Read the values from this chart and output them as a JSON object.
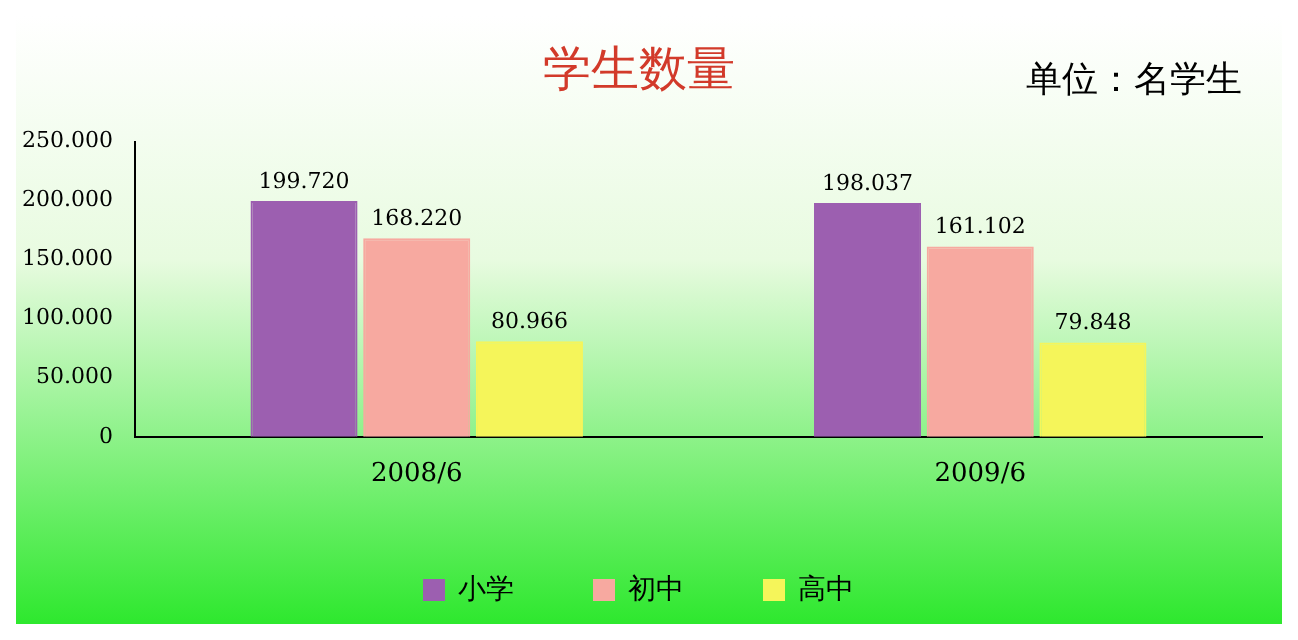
{
  "chart_data": {
    "type": "bar",
    "title": "学生数量",
    "annotations": [
      "单位：名学生"
    ],
    "categories": [
      "2008/6",
      "2009/6"
    ],
    "series": [
      {
        "name": "小学",
        "color": "#9c5fb0",
        "values": [
          199720,
          198037
        ],
        "value_labels": [
          "199.720",
          "198.037"
        ]
      },
      {
        "name": "初中",
        "color": "#f7a9a0",
        "values": [
          168220,
          161102
        ],
        "value_labels": [
          "168.220",
          "161.102"
        ]
      },
      {
        "name": "高中",
        "color": "#f5f55a",
        "values": [
          80966,
          79848
        ],
        "value_labels": [
          "80.966",
          "79.848"
        ]
      }
    ],
    "ylim": [
      0,
      250000
    ],
    "yticks": [
      0,
      {
        "value": 50000,
        "label": "50.000"
      },
      {
        "value": 100000,
        "label": "100.000"
      },
      {
        "value": 150000,
        "label": "150.000"
      },
      {
        "value": 200000,
        "label": "200.000"
      },
      {
        "value": 250000,
        "label": "250.000"
      }
    ],
    "grid": false,
    "legend": "bottom"
  }
}
